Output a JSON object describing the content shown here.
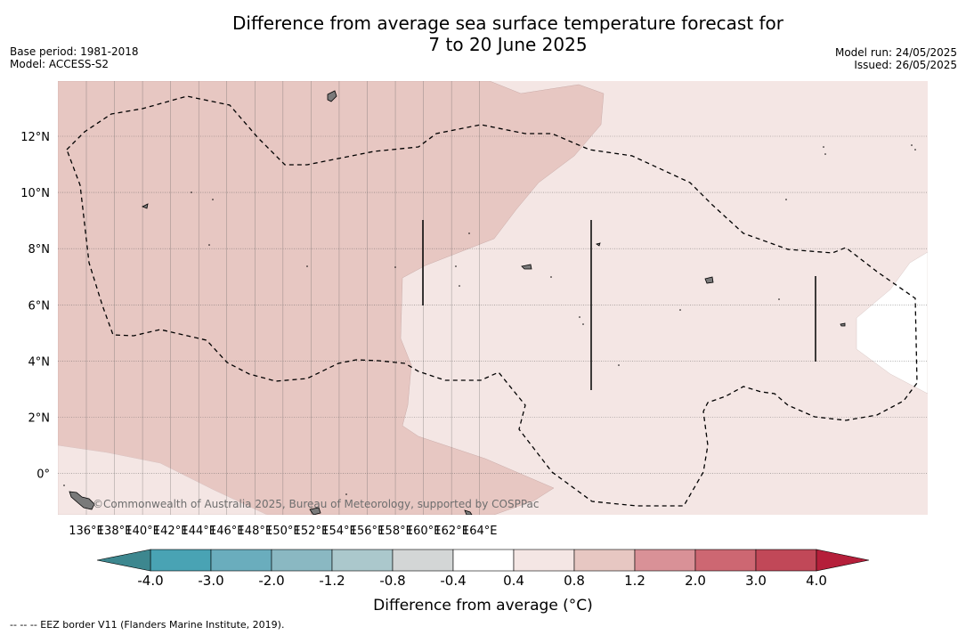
{
  "title_line1": "Difference from average sea surface temperature forecast for",
  "title_line2": "7 to 20 June 2025",
  "base_period": "Base period: 1981-2018",
  "model": "Model: ACCESS-S2",
  "model_run": "Model run: 24/05/2025",
  "issued": "Issued: 26/05/2025",
  "copyright": "©Commonwealth of Australia 2025, Bureau of Meteorology, supported by COSPPac",
  "x_ticks": [
    "136°E",
    "138°E",
    "140°E",
    "142°E",
    "144°E",
    "146°E",
    "148°E",
    "150°E",
    "152°E",
    "154°E",
    "156°E",
    "158°E",
    "160°E",
    "162°E",
    "164°E"
  ],
  "y_ticks": [
    "12°N",
    "10°N",
    "8°N",
    "6°N",
    "4°N",
    "2°N",
    "0°"
  ],
  "colorbar": {
    "title": "Difference from average (°C)",
    "labels": [
      "-4.0",
      "-3.0",
      "-2.0",
      "-1.2",
      "-0.8",
      "-0.4",
      "0.4",
      "0.8",
      "1.2",
      "2.0",
      "3.0",
      "4.0"
    ],
    "colors": [
      "#49a3b4",
      "#6aadbd",
      "#8ab8c2",
      "#abc8cc",
      "#d3d6d6",
      "#ffffff",
      "#f4e6e4",
      "#e7c7c2",
      "#d99197",
      "#cd6772",
      "#c14858"
    ],
    "under_color": "#3d878f",
    "over_color": "#b51f3a"
  },
  "map_colors": {
    "band_0_4_0_8": "#f4e6e4",
    "band_0_8_1_2": "#e7c7c2",
    "band_neutral": "#ffffff",
    "land": "#7a7a7a"
  },
  "footnote": "--  --  -- EEZ border V11 (Flanders Marine Institute, 2019)."
}
